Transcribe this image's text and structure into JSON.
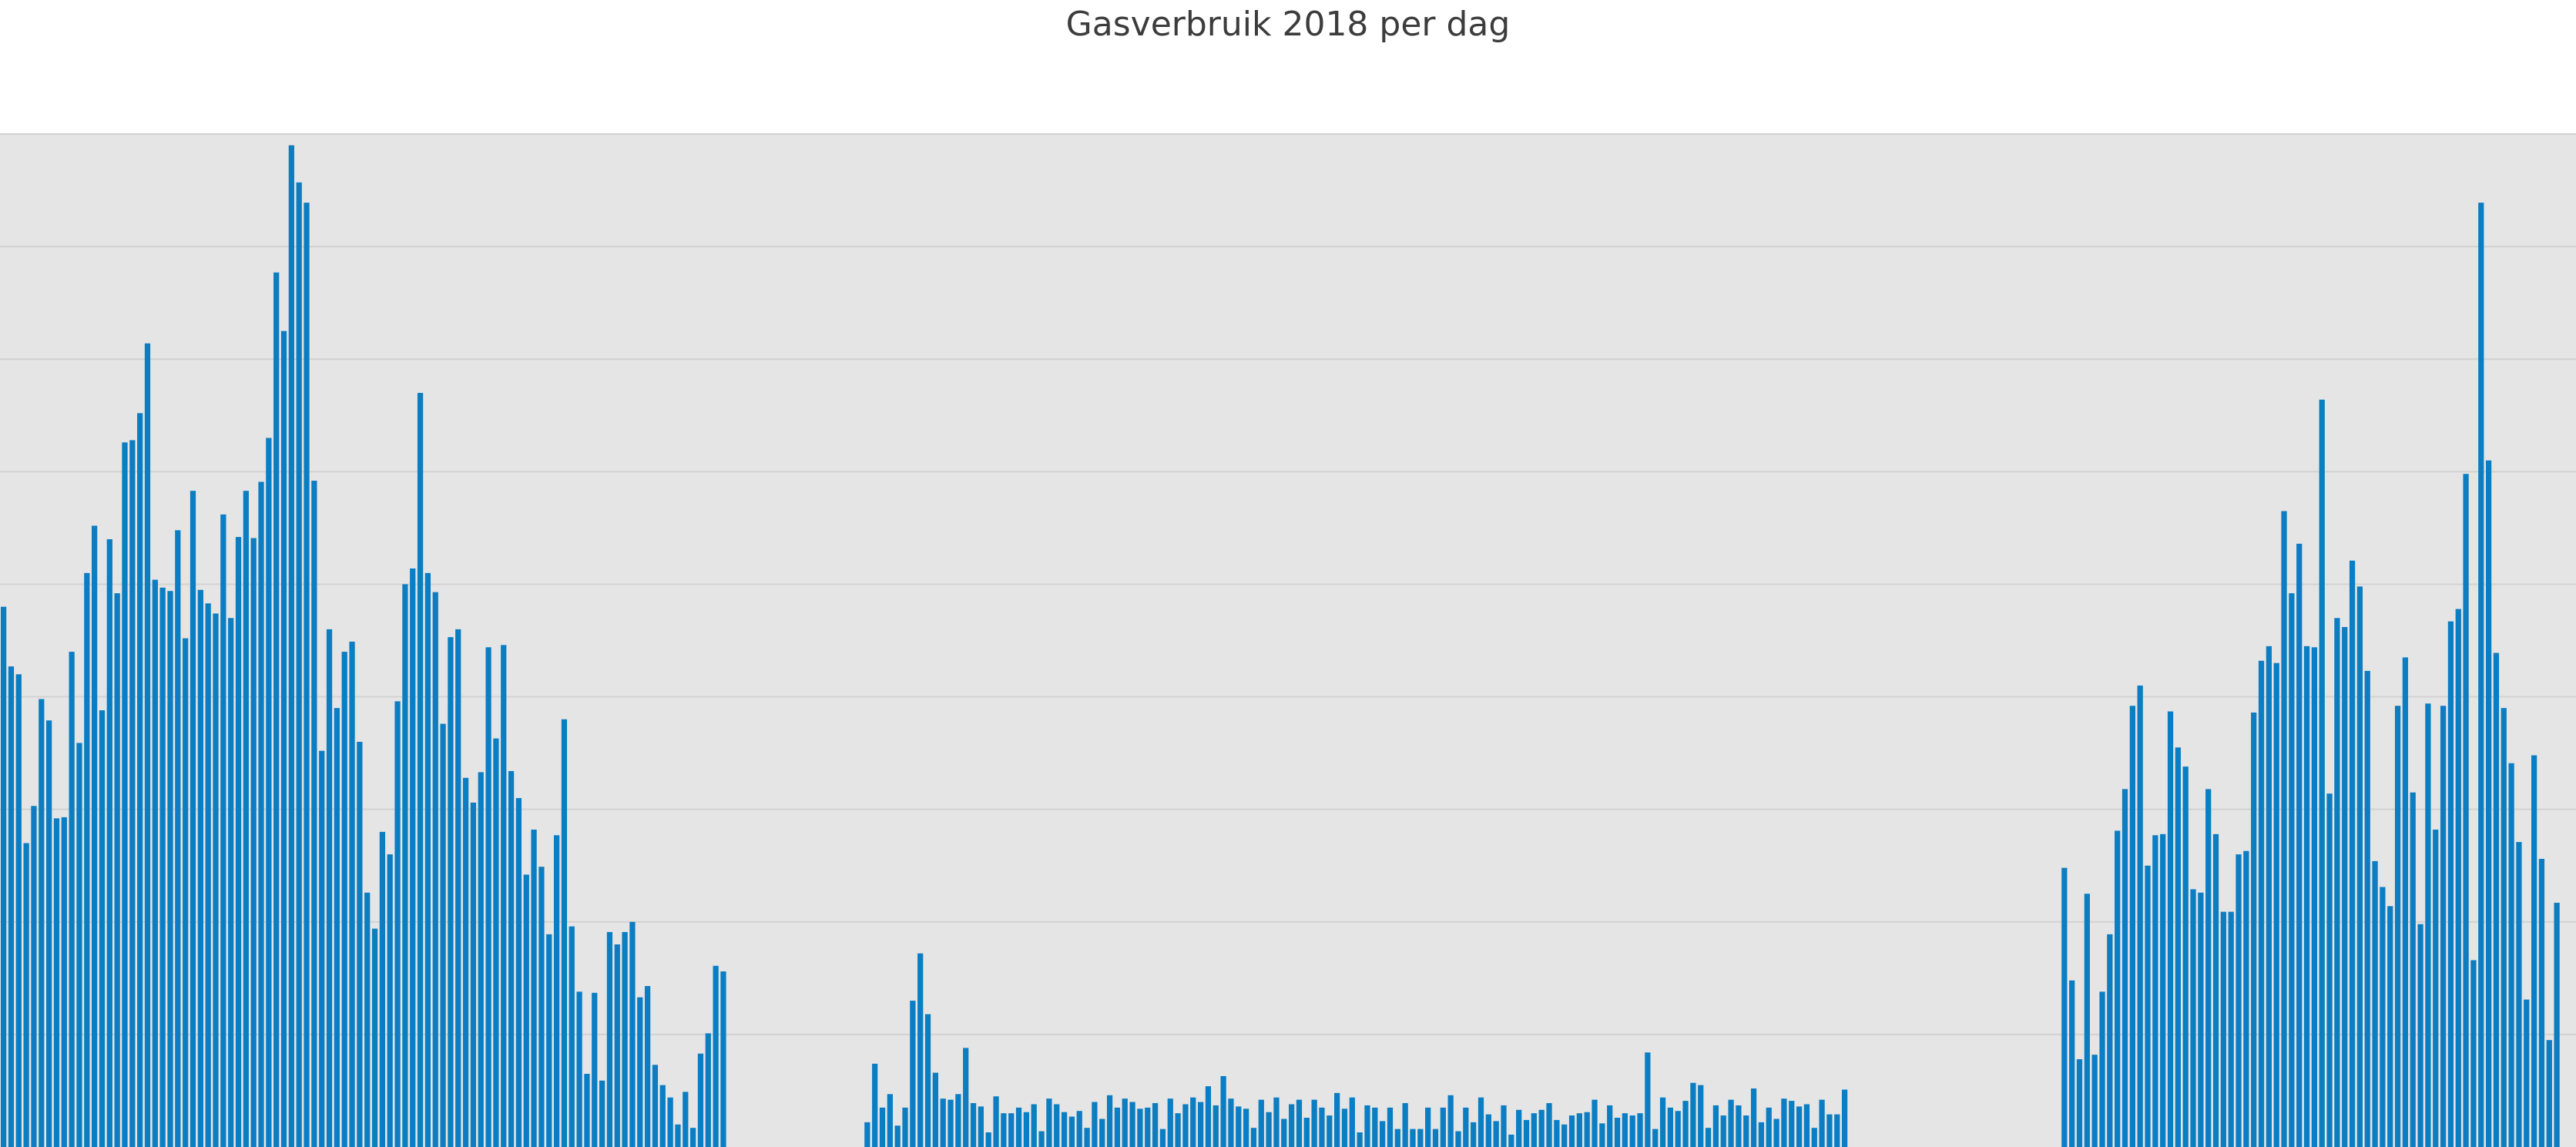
{
  "chart_data": {
    "type": "bar",
    "title": "Gasverbruik 2018 per dag",
    "xlabel": "",
    "ylabel": "",
    "grid": true,
    "ylim": [
      0,
      9
    ],
    "x_range": [
      0,
      340
    ],
    "values": [
      4.8,
      4.27,
      4.2,
      2.7,
      3.03,
      3.98,
      3.79,
      2.92,
      2.93,
      4.4,
      3.59,
      5.1,
      5.52,
      3.88,
      5.4,
      4.92,
      6.26,
      6.28,
      6.52,
      7.14,
      5.04,
      4.97,
      4.94,
      5.48,
      4.52,
      5.83,
      4.95,
      4.83,
      4.74,
      5.62,
      4.7,
      5.42,
      5.83,
      5.41,
      5.91,
      6.3,
      7.77,
      7.25,
      8.9,
      8.57,
      8.39,
      5.92,
      3.52,
      4.6,
      3.9,
      4.4,
      4.49,
      3.6,
      2.26,
      1.94,
      2.8,
      2.6,
      3.96,
      5,
      5.14,
      6.7,
      5.1,
      4.93,
      3.76,
      4.53,
      4.6,
      3.28,
      3.06,
      3.33,
      4.44,
      3.63,
      4.46,
      3.34,
      3.1,
      2.42,
      2.82,
      2.49,
      1.89,
      2.77,
      3.8,
      1.96,
      1.38,
      0.65,
      1.37,
      0.59,
      1.91,
      1.8,
      1.91,
      2,
      1.33,
      1.43,
      0.73,
      0.55,
      0.44,
      0.2,
      0.49,
      0.17,
      0.83,
      1.01,
      1.61,
      1.56,
      0,
      0,
      0,
      0,
      0,
      0,
      0,
      0,
      0,
      0,
      0,
      0,
      0,
      0,
      0,
      0,
      0,
      0,
      0.22,
      0.74,
      0.35,
      0.47,
      0.19,
      0.35,
      1.3,
      1.72,
      1.18,
      0.66,
      0.43,
      0.42,
      0.47,
      0.88,
      0.39,
      0.36,
      0.13,
      0.45,
      0.3,
      0.3,
      0.35,
      0.31,
      0.38,
      0.14,
      0.43,
      0.38,
      0.31,
      0.27,
      0.32,
      0.17,
      0.4,
      0.25,
      0.46,
      0.35,
      0.43,
      0.4,
      0.34,
      0.35,
      0.39,
      0.16,
      0.43,
      0.3,
      0.38,
      0.44,
      0.4,
      0.54,
      0.37,
      0.63,
      0.43,
      0.36,
      0.34,
      0.17,
      0.42,
      0.31,
      0.44,
      0.25,
      0.38,
      0.42,
      0.26,
      0.42,
      0.35,
      0.28,
      0.48,
      0.34,
      0.44,
      0.13,
      0.37,
      0.35,
      0.23,
      0.35,
      0.16,
      0.39,
      0.16,
      0.16,
      0.35,
      0.16,
      0.35,
      0.46,
      0.14,
      0.35,
      0.22,
      0.44,
      0.29,
      0.23,
      0.37,
      0.11,
      0.33,
      0.24,
      0.3,
      0.33,
      0.39,
      0.24,
      0.2,
      0.28,
      0.3,
      0.31,
      0.42,
      0.21,
      0.37,
      0.26,
      0.3,
      0.28,
      0.3,
      0.84,
      0.16,
      0.44,
      0.35,
      0.32,
      0.41,
      0.57,
      0.55,
      0.17,
      0.37,
      0.28,
      0.42,
      0.37,
      0.28,
      0.52,
      0.22,
      0.35,
      0.25,
      0.43,
      0.41,
      0.36,
      0.38,
      0.17,
      0.42,
      0.29,
      0.29,
      0.51,
      0,
      0,
      0,
      0,
      0,
      0,
      0,
      0,
      0,
      0,
      0,
      0,
      0,
      0,
      0,
      0,
      0,
      0,
      0,
      0,
      0,
      0,
      0,
      0,
      0,
      0,
      0,
      0,
      2.48,
      1.48,
      0.78,
      2.25,
      0.82,
      1.38,
      1.89,
      2.81,
      3.18,
      3.92,
      4.1,
      2.5,
      2.77,
      2.78,
      3.87,
      3.55,
      3.38,
      2.29,
      2.26,
      3.18,
      2.78,
      2.09,
      2.09,
      2.6,
      2.63,
      3.86,
      4.32,
      4.45,
      4.3,
      5.65,
      4.92,
      5.36,
      4.45,
      4.44,
      6.64,
      3.14,
      4.7,
      4.62,
      5.21,
      4.98,
      4.23,
      2.54,
      2.31,
      2.14,
      3.92,
      4.35,
      3.15,
      1.98,
      3.94,
      2.82,
      3.92,
      4.67,
      4.78,
      5.98,
      1.66,
      8.39,
      6.1,
      4.39,
      3.9,
      3.41,
      2.71,
      1.31,
      3.48,
      2.56,
      0.95,
      2.17
    ]
  }
}
